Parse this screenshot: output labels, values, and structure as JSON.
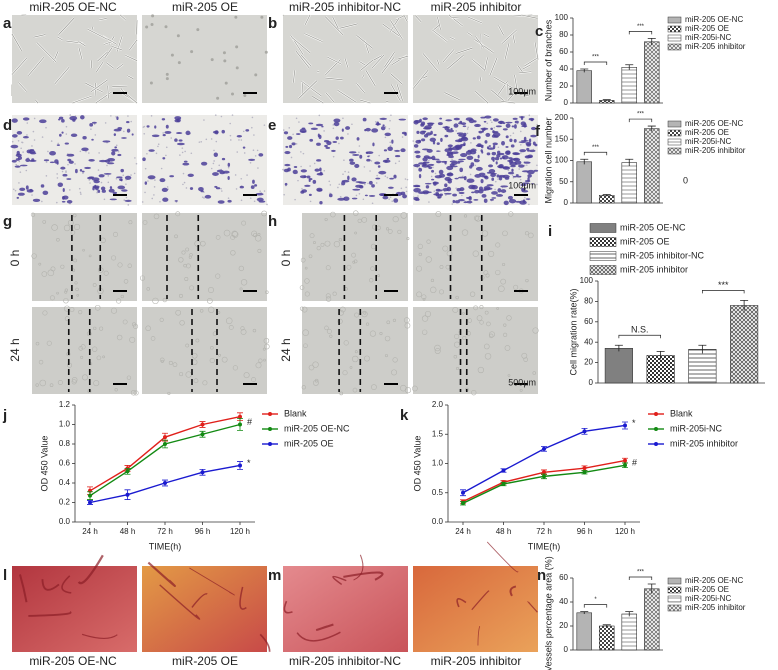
{
  "column_labels": [
    "miR-205 OE-NC",
    "miR-205 OE",
    "miR-205 inhibitor-NC",
    "miR-205 inhibitor"
  ],
  "panel_letters": [
    "a",
    "b",
    "c",
    "d",
    "e",
    "f",
    "g",
    "h",
    "i",
    "j",
    "k",
    "l",
    "m",
    "n"
  ],
  "scale_labels": [
    "100μm",
    "100μm",
    "500μm"
  ],
  "time_labels": [
    "0 h",
    "24 h",
    "0 h",
    "24 h"
  ],
  "panel_f_note": "0",
  "bottom_labels": [
    "miR-205 OE-NC",
    "miR-205 OE",
    "miR-205 inhibitor-NC",
    "miR-205 inhibitor"
  ],
  "chart_data": [
    {
      "type": "bar",
      "y_label": "Number of branches",
      "categories": [
        "miR-205 OE-NC",
        "miR-205 OE",
        "miR-205i-NC",
        "miR-205 inhibitor"
      ],
      "colors": [
        "#9a9a9a",
        "#444444",
        "#8c8c8c",
        "#6e6e6e"
      ],
      "values": [
        38,
        3,
        42,
        72
      ],
      "errors": [
        2,
        1,
        3,
        4
      ],
      "ylim": [
        0,
        100
      ],
      "yticks": [
        0,
        20,
        40,
        60,
        80,
        100
      ],
      "significance": [
        "***",
        "***"
      ],
      "legend": "right"
    },
    {
      "type": "bar",
      "y_label": "Migration cell number",
      "categories": [
        "miR-205 OE-NC",
        "miR-205 OE",
        "miR-205i-NC",
        "miR-205 inhibitor"
      ],
      "colors": [
        "#9a9a9a",
        "#444444",
        "#8c8c8c",
        "#6e6e6e"
      ],
      "values": [
        97,
        18,
        95,
        175
      ],
      "errors": [
        6,
        2,
        8,
        6
      ],
      "ylim": [
        0,
        200
      ],
      "yticks": [
        0,
        50,
        100,
        150,
        200
      ],
      "significance": [
        "***",
        "***"
      ],
      "legend": "right"
    },
    {
      "type": "bar",
      "y_label": "Cell migration rate(%)",
      "categories": [
        "miR-205 OE-NC",
        "miR-205 OE",
        "miR-205 inhibitor-NC",
        "miR-205 inhibitor"
      ],
      "colors": [
        "#555555",
        "#333333",
        "#555555",
        "#555555"
      ],
      "values": [
        34,
        27,
        33,
        76
      ],
      "errors": [
        3,
        4,
        4,
        5
      ],
      "ylim": [
        0,
        100
      ],
      "yticks": [
        0,
        20,
        40,
        60,
        80,
        100
      ],
      "significance": [
        "N.S.",
        "***"
      ],
      "legend": "top"
    },
    {
      "type": "line",
      "y_label": "OD 450 Value",
      "x_label": "TIME(h)",
      "categories": [
        "24 h",
        "48 h",
        "72 h",
        "96 h",
        "120 h"
      ],
      "ylim": [
        0,
        1.2
      ],
      "yticks": [
        {
          "value": 0,
          "label": "0.0"
        },
        0.2,
        0.4,
        0.6,
        0.8,
        {
          "value": 1,
          "label": "1.0"
        },
        1.2
      ],
      "legend": "right",
      "series": [
        {
          "name": "Blank",
          "color": "#e0201b",
          "values": [
            0.32,
            0.55,
            0.87,
            1.0,
            1.08
          ],
          "errors": [
            0.04,
            0.03,
            0.04,
            0.03,
            0.04
          ]
        },
        {
          "name": "miR-205 OE-NC",
          "color": "#138a13",
          "values": [
            0.27,
            0.52,
            0.8,
            0.9,
            1.0
          ],
          "errors": [
            0.04,
            0.03,
            0.04,
            0.03,
            0.06
          ],
          "end_label": "#"
        },
        {
          "name": "miR-205 OE",
          "color": "#1a1ad0",
          "values": [
            0.2,
            0.28,
            0.4,
            0.51,
            0.58
          ],
          "errors": [
            0.02,
            0.05,
            0.03,
            0.03,
            0.04
          ],
          "end_label": "*"
        }
      ]
    },
    {
      "type": "line",
      "y_label": "OD 450 Value",
      "x_label": "TIME(h)",
      "categories": [
        "24 h",
        "48 h",
        "72 h",
        "96 h",
        "120 h"
      ],
      "ylim": [
        0,
        2
      ],
      "yticks": [
        {
          "value": 0,
          "label": "0.0"
        },
        0.5,
        {
          "value": 1,
          "label": "1.0"
        },
        1.5,
        {
          "value": 2,
          "label": "2.0"
        }
      ],
      "legend": "right",
      "series": [
        {
          "name": "Blank",
          "color": "#e0201b",
          "values": [
            0.35,
            0.68,
            0.85,
            0.92,
            1.05
          ],
          "errors": [
            0.03,
            0.03,
            0.04,
            0.04,
            0.04
          ]
        },
        {
          "name": "miR-205i-NC",
          "color": "#138a13",
          "values": [
            0.32,
            0.65,
            0.78,
            0.85,
            0.97
          ],
          "errors": [
            0.03,
            0.03,
            0.04,
            0.03,
            0.04
          ],
          "end_label": "#"
        },
        {
          "name": "miR-205 inhibitor",
          "color": "#1a1ad0",
          "values": [
            0.5,
            0.88,
            1.25,
            1.55,
            1.65
          ],
          "errors": [
            0.05,
            0.03,
            0.04,
            0.05,
            0.06
          ],
          "end_label": "*"
        }
      ]
    },
    {
      "type": "bar",
      "y_label": "Vessels percentage area (%)",
      "categories": [
        "miR-205 OE-NC",
        "miR-205 OE",
        "miR-205i-NC",
        "miR-205 inhibitor"
      ],
      "colors": [
        "#9a9a9a",
        "#444444",
        "#8c8c8c",
        "#6e6e6e"
      ],
      "values": [
        31,
        20,
        30,
        51
      ],
      "errors": [
        1,
        1,
        2,
        4
      ],
      "ylim": [
        0,
        60
      ],
      "yticks": [
        0,
        20,
        40,
        60
      ],
      "significance": [
        "*",
        "***"
      ],
      "legend": "right"
    }
  ]
}
